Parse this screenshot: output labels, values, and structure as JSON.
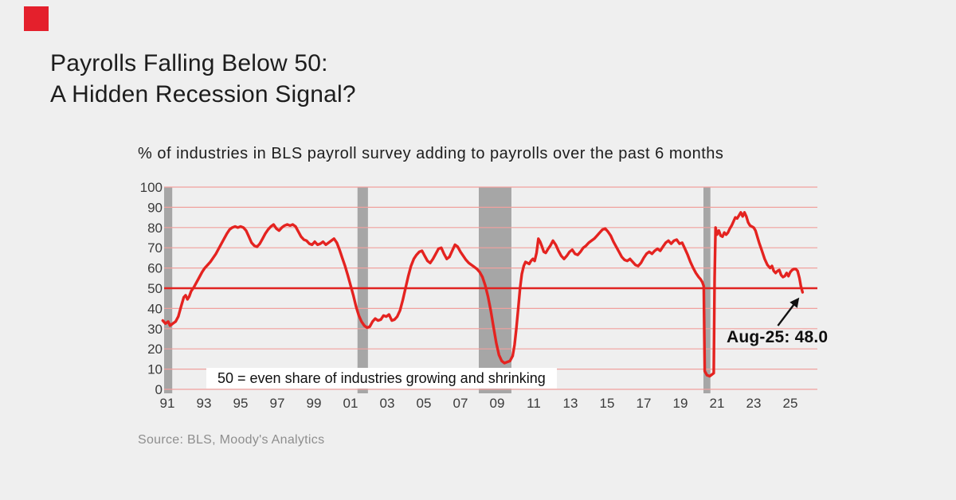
{
  "brand": {
    "mark_color": "#e4202c"
  },
  "header": {
    "title_line1": "Payrolls Falling Below 50:",
    "title_line2": "A Hidden Recession Signal?"
  },
  "chart_data": {
    "type": "line",
    "title": "% of industries in BLS payroll survey adding to payrolls over the past 6 months",
    "xlabel": "",
    "ylabel": "",
    "xlim": [
      1990.75,
      2026.4
    ],
    "ylim": [
      0,
      100
    ],
    "grid": "horizontal",
    "legend": "none",
    "background_color": "#efefef",
    "gridline_color": "#f0a19e",
    "axis_text_color": "#3a3a3a",
    "y_ticks": [
      0,
      10,
      20,
      30,
      40,
      50,
      60,
      70,
      80,
      90,
      100
    ],
    "x_ticks": [
      {
        "t": 1991,
        "label": "91"
      },
      {
        "t": 1993,
        "label": "93"
      },
      {
        "t": 1995,
        "label": "95"
      },
      {
        "t": 1997,
        "label": "97"
      },
      {
        "t": 1999,
        "label": "99"
      },
      {
        "t": 2001,
        "label": "01"
      },
      {
        "t": 2003,
        "label": "03"
      },
      {
        "t": 2005,
        "label": "05"
      },
      {
        "t": 2007,
        "label": "07"
      },
      {
        "t": 2009,
        "label": "09"
      },
      {
        "t": 2011,
        "label": "11"
      },
      {
        "t": 2013,
        "label": "13"
      },
      {
        "t": 2015,
        "label": "15"
      },
      {
        "t": 2017,
        "label": "17"
      },
      {
        "t": 2019,
        "label": "19"
      },
      {
        "t": 2021,
        "label": "21"
      },
      {
        "t": 2023,
        "label": "23"
      },
      {
        "t": 2025,
        "label": "25"
      }
    ],
    "midline": {
      "value": 50,
      "color": "#e02321",
      "label": "50 = even share of industries growing and shrinking"
    },
    "recession_bands": {
      "color": "#a6a6a6",
      "ranges": [
        [
          1990.75,
          1991.27
        ],
        [
          2001.38,
          2001.95
        ],
        [
          2008.0,
          2009.78
        ],
        [
          2020.26,
          2020.64
        ]
      ]
    },
    "annotation": {
      "label": "Aug-25: 48.0",
      "points_to": {
        "t": 2025.67,
        "value": 48.0
      }
    },
    "source": "Source: BLS, Moody's Analytics",
    "series": [
      {
        "name": "% of industries adding to payrolls over past 6 months",
        "color": "#e42320",
        "points": [
          [
            1990.75,
            34
          ],
          [
            1990.9,
            32.5
          ],
          [
            1991.05,
            33.5
          ],
          [
            1991.15,
            31.5
          ],
          [
            1991.3,
            32.5
          ],
          [
            1991.45,
            33.5
          ],
          [
            1991.6,
            36
          ],
          [
            1991.75,
            41
          ],
          [
            1991.9,
            45.5
          ],
          [
            1992.0,
            46.5
          ],
          [
            1992.1,
            44.5
          ],
          [
            1992.2,
            46
          ],
          [
            1992.3,
            48.5
          ],
          [
            1992.45,
            50.5
          ],
          [
            1992.6,
            53
          ],
          [
            1992.75,
            55.5
          ],
          [
            1992.9,
            58
          ],
          [
            1993.05,
            60
          ],
          [
            1993.2,
            61.5
          ],
          [
            1993.35,
            63
          ],
          [
            1993.5,
            65
          ],
          [
            1993.65,
            67
          ],
          [
            1993.8,
            69.5
          ],
          [
            1993.95,
            72
          ],
          [
            1994.1,
            74.5
          ],
          [
            1994.25,
            77
          ],
          [
            1994.4,
            79
          ],
          [
            1994.55,
            80
          ],
          [
            1994.7,
            80.5
          ],
          [
            1994.85,
            80
          ],
          [
            1995.0,
            80.5
          ],
          [
            1995.15,
            80
          ],
          [
            1995.3,
            78.5
          ],
          [
            1995.45,
            75.5
          ],
          [
            1995.6,
            72.5
          ],
          [
            1995.75,
            71
          ],
          [
            1995.9,
            70.5
          ],
          [
            1996.05,
            72
          ],
          [
            1996.2,
            74.5
          ],
          [
            1996.35,
            77
          ],
          [
            1996.5,
            79
          ],
          [
            1996.65,
            80.5
          ],
          [
            1996.8,
            81.5
          ],
          [
            1996.95,
            79.5
          ],
          [
            1997.1,
            78.5
          ],
          [
            1997.25,
            80
          ],
          [
            1997.4,
            81
          ],
          [
            1997.55,
            81.5
          ],
          [
            1997.7,
            81
          ],
          [
            1997.85,
            81.5
          ],
          [
            1998.0,
            80.5
          ],
          [
            1998.15,
            78
          ],
          [
            1998.3,
            75.5
          ],
          [
            1998.45,
            74
          ],
          [
            1998.6,
            73.5
          ],
          [
            1998.75,
            72
          ],
          [
            1998.9,
            71.5
          ],
          [
            1999.05,
            73
          ],
          [
            1999.2,
            71.5
          ],
          [
            1999.35,
            72
          ],
          [
            1999.5,
            73
          ],
          [
            1999.65,
            71.5
          ],
          [
            1999.8,
            72.5
          ],
          [
            1999.95,
            73.5
          ],
          [
            2000.1,
            74.5
          ],
          [
            2000.25,
            72.5
          ],
          [
            2000.4,
            69
          ],
          [
            2000.55,
            65
          ],
          [
            2000.7,
            61
          ],
          [
            2000.85,
            56.5
          ],
          [
            2001.0,
            51.5
          ],
          [
            2001.15,
            46.5
          ],
          [
            2001.3,
            41
          ],
          [
            2001.45,
            36.5
          ],
          [
            2001.6,
            33.5
          ],
          [
            2001.75,
            31.5
          ],
          [
            2001.9,
            30.5
          ],
          [
            2002.05,
            31
          ],
          [
            2002.2,
            33.5
          ],
          [
            2002.35,
            35
          ],
          [
            2002.5,
            34
          ],
          [
            2002.65,
            34.5
          ],
          [
            2002.8,
            36.5
          ],
          [
            2002.95,
            36
          ],
          [
            2003.1,
            37
          ],
          [
            2003.25,
            34
          ],
          [
            2003.4,
            34.5
          ],
          [
            2003.55,
            36
          ],
          [
            2003.7,
            39
          ],
          [
            2003.85,
            44
          ],
          [
            2004.0,
            50
          ],
          [
            2004.15,
            56
          ],
          [
            2004.3,
            61
          ],
          [
            2004.45,
            64.5
          ],
          [
            2004.6,
            66.5
          ],
          [
            2004.75,
            68
          ],
          [
            2004.9,
            68.5
          ],
          [
            2005.05,
            66
          ],
          [
            2005.2,
            63.5
          ],
          [
            2005.35,
            62.5
          ],
          [
            2005.5,
            64.5
          ],
          [
            2005.65,
            67
          ],
          [
            2005.8,
            69.5
          ],
          [
            2005.95,
            70
          ],
          [
            2006.1,
            67
          ],
          [
            2006.25,
            64.5
          ],
          [
            2006.4,
            65.5
          ],
          [
            2006.55,
            68.5
          ],
          [
            2006.7,
            71.5
          ],
          [
            2006.85,
            70.5
          ],
          [
            2007.0,
            68
          ],
          [
            2007.15,
            66
          ],
          [
            2007.3,
            64
          ],
          [
            2007.45,
            62.5
          ],
          [
            2007.6,
            61.5
          ],
          [
            2007.75,
            60.5
          ],
          [
            2007.9,
            59.5
          ],
          [
            2008.05,
            58
          ],
          [
            2008.2,
            55.5
          ],
          [
            2008.35,
            51.5
          ],
          [
            2008.5,
            46
          ],
          [
            2008.65,
            39
          ],
          [
            2008.8,
            31
          ],
          [
            2008.95,
            23
          ],
          [
            2009.1,
            17
          ],
          [
            2009.25,
            14
          ],
          [
            2009.4,
            13
          ],
          [
            2009.55,
            13.5
          ],
          [
            2009.7,
            14
          ],
          [
            2009.85,
            16.5
          ],
          [
            2009.95,
            22
          ],
          [
            2010.05,
            30
          ],
          [
            2010.15,
            40
          ],
          [
            2010.25,
            50
          ],
          [
            2010.35,
            57
          ],
          [
            2010.45,
            61
          ],
          [
            2010.55,
            63
          ],
          [
            2010.65,
            62.5
          ],
          [
            2010.75,
            62
          ],
          [
            2010.85,
            63.5
          ],
          [
            2010.95,
            64.5
          ],
          [
            2011.05,
            63.5
          ],
          [
            2011.15,
            67.5
          ],
          [
            2011.25,
            74.5
          ],
          [
            2011.35,
            73
          ],
          [
            2011.45,
            70.5
          ],
          [
            2011.55,
            68
          ],
          [
            2011.65,
            67.5
          ],
          [
            2011.75,
            69
          ],
          [
            2011.9,
            71
          ],
          [
            2012.05,
            73.5
          ],
          [
            2012.2,
            71.5
          ],
          [
            2012.35,
            68.5
          ],
          [
            2012.5,
            66
          ],
          [
            2012.65,
            64.5
          ],
          [
            2012.8,
            66
          ],
          [
            2012.95,
            68
          ],
          [
            2013.1,
            69
          ],
          [
            2013.25,
            67
          ],
          [
            2013.4,
            66.5
          ],
          [
            2013.55,
            68
          ],
          [
            2013.7,
            70
          ],
          [
            2013.85,
            71
          ],
          [
            2014.0,
            72.5
          ],
          [
            2014.15,
            73.5
          ],
          [
            2014.3,
            74.5
          ],
          [
            2014.45,
            76
          ],
          [
            2014.6,
            77.5
          ],
          [
            2014.75,
            79
          ],
          [
            2014.9,
            79.5
          ],
          [
            2015.05,
            78
          ],
          [
            2015.2,
            76
          ],
          [
            2015.35,
            73
          ],
          [
            2015.5,
            70.5
          ],
          [
            2015.65,
            68
          ],
          [
            2015.8,
            65.5
          ],
          [
            2015.95,
            64
          ],
          [
            2016.1,
            63.5
          ],
          [
            2016.25,
            64.5
          ],
          [
            2016.4,
            63
          ],
          [
            2016.55,
            61.5
          ],
          [
            2016.7,
            61
          ],
          [
            2016.85,
            62.5
          ],
          [
            2017.0,
            65
          ],
          [
            2017.15,
            67
          ],
          [
            2017.3,
            68
          ],
          [
            2017.45,
            67
          ],
          [
            2017.6,
            68.5
          ],
          [
            2017.75,
            69.5
          ],
          [
            2017.9,
            68.5
          ],
          [
            2018.05,
            70.5
          ],
          [
            2018.2,
            72.5
          ],
          [
            2018.35,
            73.5
          ],
          [
            2018.5,
            72
          ],
          [
            2018.65,
            73.5
          ],
          [
            2018.8,
            74
          ],
          [
            2018.95,
            72
          ],
          [
            2019.1,
            72.5
          ],
          [
            2019.25,
            69.5
          ],
          [
            2019.4,
            66.5
          ],
          [
            2019.55,
            63
          ],
          [
            2019.7,
            60
          ],
          [
            2019.85,
            57.5
          ],
          [
            2020.0,
            55.5
          ],
          [
            2020.1,
            54.5
          ],
          [
            2020.2,
            53
          ],
          [
            2020.28,
            51
          ],
          [
            2020.33,
            9
          ],
          [
            2020.45,
            7
          ],
          [
            2020.6,
            6.5
          ],
          [
            2020.75,
            7.5
          ],
          [
            2020.82,
            8
          ],
          [
            2020.87,
            55
          ],
          [
            2020.92,
            80
          ],
          [
            2021.0,
            76.5
          ],
          [
            2021.1,
            78.5
          ],
          [
            2021.2,
            76
          ],
          [
            2021.3,
            75.5
          ],
          [
            2021.4,
            77.5
          ],
          [
            2021.5,
            76.5
          ],
          [
            2021.6,
            77.5
          ],
          [
            2021.7,
            79.5
          ],
          [
            2021.8,
            81
          ],
          [
            2021.9,
            83
          ],
          [
            2022.0,
            85
          ],
          [
            2022.1,
            84.5
          ],
          [
            2022.2,
            86
          ],
          [
            2022.3,
            87.5
          ],
          [
            2022.4,
            85.5
          ],
          [
            2022.5,
            87.5
          ],
          [
            2022.6,
            85.5
          ],
          [
            2022.7,
            82.5
          ],
          [
            2022.8,
            81
          ],
          [
            2022.9,
            80.5
          ],
          [
            2023.0,
            80
          ],
          [
            2023.1,
            78.5
          ],
          [
            2023.2,
            75.5
          ],
          [
            2023.3,
            72.5
          ],
          [
            2023.45,
            68.5
          ],
          [
            2023.6,
            64.5
          ],
          [
            2023.75,
            61.5
          ],
          [
            2023.9,
            60
          ],
          [
            2024.0,
            61
          ],
          [
            2024.1,
            58.5
          ],
          [
            2024.2,
            57.5
          ],
          [
            2024.3,
            58.5
          ],
          [
            2024.4,
            59
          ],
          [
            2024.5,
            56.5
          ],
          [
            2024.6,
            55.5
          ],
          [
            2024.7,
            56
          ],
          [
            2024.8,
            57.5
          ],
          [
            2024.9,
            56
          ],
          [
            2025.0,
            58
          ],
          [
            2025.1,
            59
          ],
          [
            2025.2,
            59.5
          ],
          [
            2025.3,
            59.5
          ],
          [
            2025.4,
            58.5
          ],
          [
            2025.5,
            55
          ],
          [
            2025.58,
            51
          ],
          [
            2025.67,
            48
          ]
        ]
      }
    ]
  }
}
